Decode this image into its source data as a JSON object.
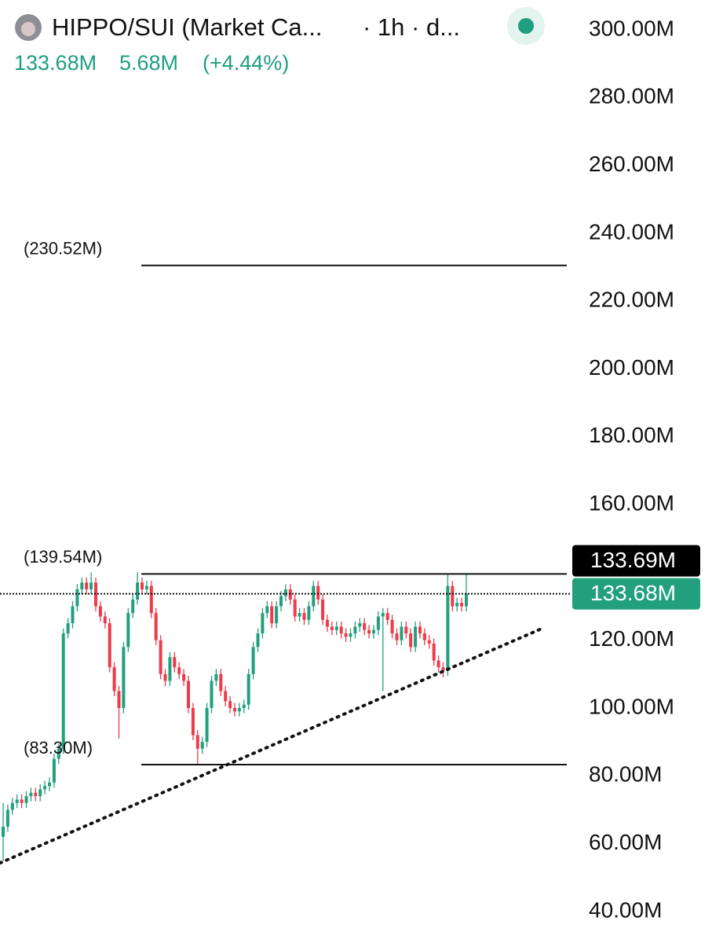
{
  "header": {
    "title": "HIPPO/SUI (Market Ca...",
    "interval": "· 1h · d...",
    "last": "133.68M",
    "change": "5.68M",
    "change_pct": "(+4.44%)"
  },
  "chart_data": {
    "type": "candlestick",
    "up_color": "#22a07e",
    "down_color": "#ee3a4a",
    "open": [
      62,
      65,
      70,
      72,
      73,
      72,
      74,
      75,
      74,
      76,
      77,
      78,
      85,
      88,
      122,
      125,
      130,
      135,
      137,
      135,
      137,
      130,
      127,
      125,
      112,
      105,
      100,
      118,
      128,
      132,
      137,
      135,
      136,
      128,
      120,
      110,
      108,
      115,
      112,
      110,
      108,
      100,
      92,
      88,
      90,
      100,
      108,
      110,
      105,
      102,
      100,
      99,
      100,
      101,
      110,
      118,
      122,
      128,
      130,
      125,
      130,
      133,
      135,
      132,
      127,
      128,
      126,
      130,
      136,
      132,
      126,
      124,
      123,
      124,
      122,
      121,
      122,
      124,
      125,
      123,
      122,
      123,
      127,
      128,
      126,
      122,
      120,
      124,
      122,
      118,
      124,
      122,
      120,
      119,
      114,
      112,
      111,
      136,
      130,
      131,
      130
    ],
    "high": [
      72,
      71.5,
      73.5,
      74.5,
      74.5,
      75.5,
      76.5,
      76.5,
      77.5,
      78.5,
      79.5,
      86.5,
      89.5,
      123.5,
      126.5,
      131.5,
      136.5,
      138.5,
      138.5,
      140,
      138.5,
      131.5,
      128.5,
      126.5,
      113.5,
      106.5,
      119.5,
      129.5,
      133.5,
      140,
      138.5,
      137.5,
      137.5,
      129.5,
      121.5,
      111.5,
      116.5,
      116.5,
      113.5,
      111.5,
      109.5,
      101.5,
      93.5,
      91.5,
      101.5,
      109.5,
      111.5,
      111.5,
      106.5,
      103.5,
      101.5,
      101.5,
      102.5,
      111.5,
      119.5,
      123.5,
      129.5,
      131.5,
      131.5,
      131.5,
      134.5,
      136.5,
      136.5,
      133.5,
      129.5,
      129.5,
      131.5,
      137.5,
      137.5,
      133.5,
      127.5,
      125.5,
      125.5,
      125.5,
      123.5,
      123.5,
      125.5,
      126.5,
      126.5,
      124.5,
      124.5,
      128.5,
      129.5,
      129.5,
      127.5,
      123.5,
      125.5,
      125.5,
      123.5,
      125.5,
      125.5,
      123.5,
      121.5,
      120.5,
      115.5,
      113.5,
      139.5,
      137.5,
      132.5,
      132.5,
      139.5
    ],
    "low": [
      55,
      63.5,
      68.5,
      70.5,
      70.5,
      70.5,
      72.5,
      72.5,
      72.5,
      74.5,
      75.5,
      76.5,
      83.5,
      86.5,
      120.5,
      123.5,
      128.5,
      133.5,
      133.5,
      133.5,
      128.5,
      125.5,
      123.5,
      110.5,
      103.5,
      91,
      98.5,
      116.5,
      126.5,
      130.5,
      133.5,
      133.5,
      126.5,
      118.5,
      108.5,
      106.5,
      106.5,
      110.5,
      108.5,
      106.5,
      98.5,
      90.5,
      83.3,
      86.5,
      88.5,
      98.5,
      106.5,
      103.5,
      100.5,
      98.5,
      97.5,
      97.5,
      98.5,
      99.5,
      108.5,
      116.5,
      120.5,
      126.5,
      123.5,
      123.5,
      128.5,
      131.5,
      130.5,
      125.5,
      125.5,
      124.5,
      124.5,
      128.5,
      130.5,
      124.5,
      122.5,
      121.5,
      121.5,
      120.5,
      119.5,
      119.5,
      120.5,
      122.5,
      121.5,
      120.5,
      120.5,
      121.5,
      105,
      124.5,
      120.5,
      118.5,
      118.5,
      120.5,
      116.5,
      116.5,
      120.5,
      118.5,
      117.5,
      112.5,
      110.5,
      109,
      109.5,
      128.5,
      128.5,
      128.5,
      128.5
    ],
    "close": [
      65,
      70,
      72,
      73,
      72,
      74,
      75,
      74,
      76,
      77,
      78,
      85,
      88,
      122,
      125,
      130,
      135,
      137,
      135,
      137,
      130,
      127,
      125,
      112,
      105,
      100,
      118,
      128,
      132,
      137,
      135,
      136,
      128,
      120,
      110,
      108,
      115,
      112,
      110,
      108,
      100,
      92,
      88,
      90,
      100,
      108,
      110,
      105,
      102,
      100,
      99,
      100,
      101,
      110,
      118,
      122,
      128,
      130,
      125,
      130,
      133,
      135,
      132,
      127,
      128,
      126,
      130,
      136,
      132,
      126,
      124,
      123,
      124,
      122,
      121,
      122,
      124,
      125,
      123,
      122,
      123,
      127,
      128,
      126,
      122,
      120,
      124,
      122,
      118,
      124,
      122,
      120,
      119,
      114,
      112,
      111,
      136,
      130,
      131,
      130,
      133.68
    ],
    "ylim": [
      30.7,
      308.8
    ],
    "yticks": [
      {
        "value": 40,
        "label": "40.00M"
      },
      {
        "value": 60,
        "label": "60.00M"
      },
      {
        "value": 80,
        "label": "80.00M"
      },
      {
        "value": 100,
        "label": "100.00M"
      },
      {
        "value": 120,
        "label": "120.00M"
      },
      {
        "value": 160,
        "label": "160.00M"
      },
      {
        "value": 180,
        "label": "180.00M"
      },
      {
        "value": 200,
        "label": "200.00M"
      },
      {
        "value": 220,
        "label": "220.00M"
      },
      {
        "value": 240,
        "label": "240.00M"
      },
      {
        "value": 260,
        "label": "260.00M"
      },
      {
        "value": 280,
        "label": "280.00M"
      },
      {
        "value": 300,
        "label": "300.00M"
      }
    ],
    "levels": [
      {
        "value": 230.52,
        "label": "(230.52M)"
      },
      {
        "value": 139.54,
        "label": "(139.54M)"
      },
      {
        "value": 83.3,
        "label": "(83.30M)"
      }
    ],
    "trendline": {
      "start": 54.3,
      "end": 123.4
    },
    "price_labels": [
      {
        "value": 133.69,
        "label": "133.69M",
        "color": "#000000"
      },
      {
        "value": 133.68,
        "label": "133.68M",
        "color": "#22a07e"
      }
    ]
  }
}
